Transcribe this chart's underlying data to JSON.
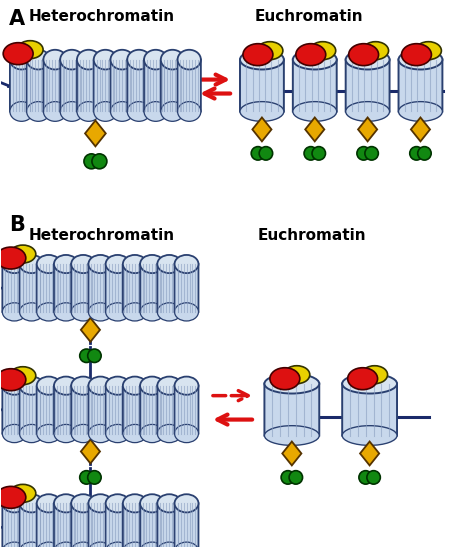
{
  "panel_A_label": "A",
  "panel_B_label": "B",
  "hetero_label": "Heterochromatin",
  "eu_label": "Euchromatin",
  "colors": {
    "nuc_face": "#c8d8ec",
    "nuc_edge": "#2a4070",
    "nuc_stripe": "#8a9ec0",
    "nuc_top_face": "#d8e4f0",
    "nuc_top_edge": "#2a4070",
    "red_oval": "#dd1111",
    "yellow_oval": "#e8d000",
    "yellow_diamond": "#e8a800",
    "green_circle": "#118811",
    "dna_line": "#1a2a6a",
    "arrow_red": "#dd1111",
    "background": "#ffffff",
    "text_color": "#000000"
  },
  "figsize": [
    4.74,
    5.48
  ],
  "dpi": 100
}
